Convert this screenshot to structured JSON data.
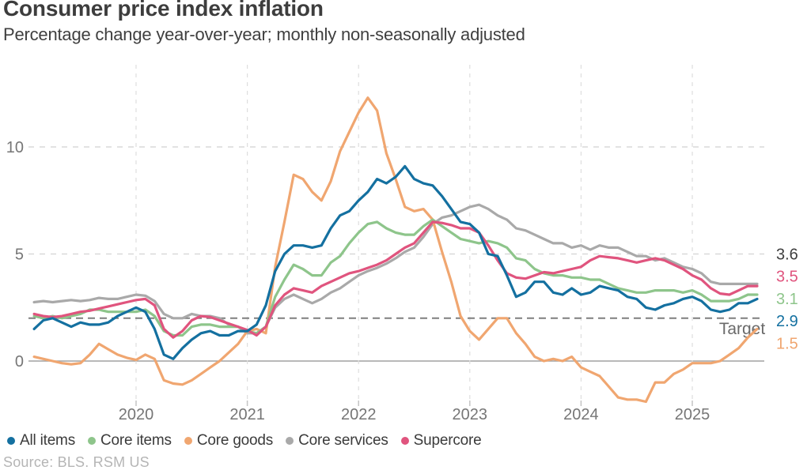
{
  "source": "Source: BLS. RSM US",
  "chart_data": {
    "type": "line",
    "title": "Consumer price index inflation",
    "subtitle": "Percentage change year-over-year; monthly non-seasonally adjusted",
    "xlabel": "",
    "ylabel": "",
    "x_start": "2019-02",
    "x_end": "2025-08",
    "x_freq": "monthly",
    "x_tick_years": [
      2020,
      2021,
      2022,
      2023,
      2024,
      2025
    ],
    "y_ticks": [
      0,
      5,
      10
    ],
    "ylim": [
      -1.9,
      13.8
    ],
    "grid": true,
    "legend_position": "bottom",
    "target": {
      "value": 2,
      "label": "Target"
    },
    "series": [
      {
        "name": "All items",
        "color": "#1470a0",
        "label_color": "#1470a0",
        "end_label": "2.9",
        "values": [
          1.5,
          1.9,
          2.0,
          1.8,
          1.6,
          1.8,
          1.7,
          1.7,
          1.8,
          2.1,
          2.3,
          2.5,
          2.3,
          1.5,
          0.3,
          0.1,
          0.6,
          1.0,
          1.3,
          1.4,
          1.2,
          1.2,
          1.4,
          1.4,
          1.7,
          2.6,
          4.2,
          5.0,
          5.4,
          5.4,
          5.3,
          5.4,
          6.2,
          6.8,
          7.0,
          7.5,
          7.9,
          8.5,
          8.3,
          8.6,
          9.1,
          8.5,
          8.3,
          8.2,
          7.7,
          7.1,
          6.5,
          6.4,
          6.0,
          5.0,
          4.9,
          4.0,
          3.0,
          3.2,
          3.7,
          3.7,
          3.2,
          3.1,
          3.4,
          3.1,
          3.2,
          3.5,
          3.4,
          3.3,
          3.0,
          2.9,
          2.5,
          2.4,
          2.6,
          2.7,
          2.9,
          3.0,
          2.8,
          2.4,
          2.3,
          2.4,
          2.7,
          2.7,
          2.9
        ]
      },
      {
        "name": "Core items",
        "color": "#8ec58b",
        "label_color": "#8ec58b",
        "end_label": "3.1",
        "values": [
          2.1,
          2.0,
          2.1,
          2.0,
          2.1,
          2.2,
          2.4,
          2.4,
          2.3,
          2.3,
          2.3,
          2.3,
          2.4,
          2.1,
          1.4,
          1.2,
          1.2,
          1.6,
          1.7,
          1.7,
          1.6,
          1.6,
          1.6,
          1.4,
          1.3,
          1.6,
          3.0,
          3.8,
          4.5,
          4.3,
          4.0,
          4.0,
          4.6,
          4.9,
          5.5,
          6.0,
          6.4,
          6.5,
          6.2,
          6.0,
          5.9,
          5.9,
          6.3,
          6.6,
          6.3,
          6.0,
          5.7,
          5.6,
          5.5,
          5.6,
          5.5,
          5.3,
          4.8,
          4.7,
          4.3,
          4.1,
          4.0,
          4.0,
          3.9,
          3.9,
          3.8,
          3.8,
          3.6,
          3.4,
          3.3,
          3.2,
          3.2,
          3.3,
          3.3,
          3.3,
          3.2,
          3.3,
          3.1,
          2.8,
          2.8,
          2.8,
          2.9,
          3.1,
          3.1
        ]
      },
      {
        "name": "Core goods",
        "color": "#f0a670",
        "label_color": "#f0a670",
        "end_label": "1.5",
        "values": [
          0.2,
          0.1,
          0.0,
          -0.1,
          -0.15,
          -0.1,
          0.3,
          0.8,
          0.55,
          0.3,
          0.15,
          0.05,
          0.3,
          0.1,
          -0.9,
          -1.05,
          -1.1,
          -0.9,
          -0.6,
          -0.3,
          0.0,
          0.4,
          0.8,
          1.4,
          1.5,
          1.3,
          4.4,
          6.5,
          8.7,
          8.5,
          7.9,
          7.5,
          8.4,
          9.8,
          10.7,
          11.6,
          12.3,
          11.7,
          9.7,
          8.5,
          7.2,
          7.0,
          7.1,
          6.6,
          5.1,
          3.7,
          2.1,
          1.4,
          1.0,
          1.5,
          2.0,
          2.0,
          1.3,
          0.8,
          0.2,
          0.0,
          0.1,
          0.0,
          0.2,
          -0.3,
          -0.5,
          -0.7,
          -1.2,
          -1.7,
          -1.8,
          -1.8,
          -1.9,
          -1.0,
          -1.0,
          -0.6,
          -0.4,
          -0.1,
          -0.1,
          -0.1,
          0.0,
          0.3,
          0.6,
          1.1,
          1.5
        ]
      },
      {
        "name": "Core services",
        "color": "#a9a9a9",
        "label_color": "#3f3f3f",
        "end_label": "3.6",
        "values": [
          2.75,
          2.8,
          2.75,
          2.8,
          2.85,
          2.8,
          2.85,
          2.95,
          2.9,
          2.9,
          3.0,
          3.1,
          3.05,
          2.8,
          2.2,
          2.0,
          2.0,
          2.2,
          2.1,
          2.1,
          2.0,
          1.7,
          1.6,
          1.3,
          1.3,
          1.6,
          2.5,
          2.9,
          3.1,
          2.9,
          2.7,
          2.9,
          3.2,
          3.4,
          3.7,
          4.0,
          4.2,
          4.35,
          4.55,
          4.8,
          5.1,
          5.3,
          5.8,
          6.4,
          6.7,
          6.8,
          7.0,
          7.2,
          7.3,
          7.1,
          6.8,
          6.6,
          6.2,
          6.1,
          5.9,
          5.7,
          5.5,
          5.5,
          5.3,
          5.4,
          5.2,
          5.4,
          5.3,
          5.3,
          5.1,
          4.9,
          4.9,
          4.7,
          4.8,
          4.6,
          4.4,
          4.3,
          4.1,
          3.7,
          3.6,
          3.6,
          3.6,
          3.6,
          3.6
        ]
      },
      {
        "name": "Supercore",
        "color": "#e0547e",
        "label_color": "#e0547e",
        "end_label": "3.5",
        "values": [
          2.2,
          2.1,
          2.05,
          2.1,
          2.2,
          2.3,
          2.35,
          2.45,
          2.55,
          2.65,
          2.75,
          2.85,
          2.9,
          2.6,
          1.5,
          1.1,
          1.4,
          1.9,
          2.1,
          2.05,
          1.9,
          1.75,
          1.6,
          1.45,
          1.2,
          1.6,
          2.6,
          3.1,
          3.4,
          3.3,
          3.2,
          3.5,
          3.7,
          3.9,
          4.1,
          4.2,
          4.35,
          4.5,
          4.7,
          5.0,
          5.3,
          5.5,
          6.0,
          6.5,
          6.45,
          6.35,
          6.2,
          6.2,
          6.0,
          5.4,
          4.7,
          4.1,
          3.9,
          3.85,
          4.0,
          4.15,
          4.1,
          4.2,
          4.3,
          4.4,
          4.7,
          4.9,
          4.85,
          4.8,
          4.7,
          4.6,
          4.7,
          4.8,
          4.7,
          4.5,
          4.3,
          4.0,
          3.8,
          3.4,
          3.15,
          3.1,
          3.3,
          3.5,
          3.5
        ]
      }
    ]
  }
}
